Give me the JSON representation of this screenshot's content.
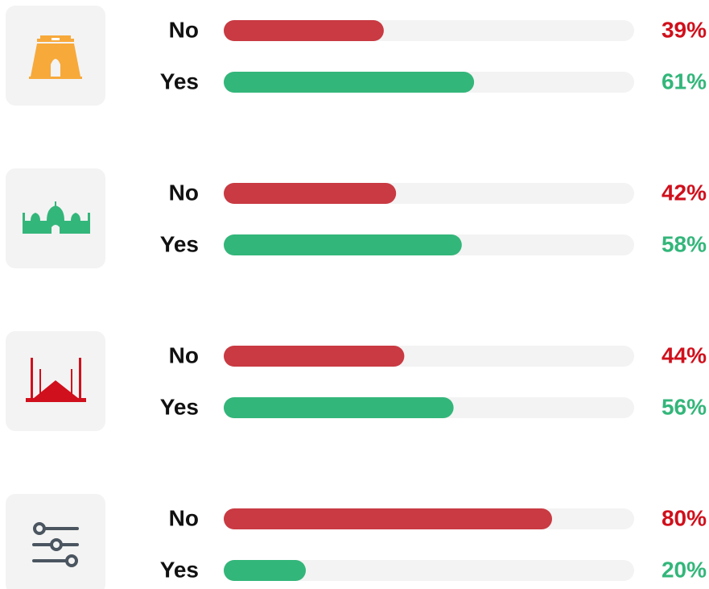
{
  "chart_data": [
    {
      "type": "bar",
      "categories": [
        "No",
        "Yes"
      ],
      "values": [
        39,
        61
      ],
      "value_labels": [
        "39%",
        "61%"
      ],
      "xlim": [
        0,
        100
      ],
      "colors": [
        "#c93a42",
        "#33b67a"
      ],
      "label_colors": [
        "#d0101c",
        "#33b67a"
      ],
      "track_color": "#f3f3f3"
    },
    {
      "type": "bar",
      "categories": [
        "No",
        "Yes"
      ],
      "values": [
        42,
        58
      ],
      "value_labels": [
        "42%",
        "58%"
      ],
      "xlim": [
        0,
        100
      ],
      "colors": [
        "#c93a42",
        "#33b67a"
      ],
      "label_colors": [
        "#d0101c",
        "#33b67a"
      ],
      "track_color": "#f3f3f3"
    },
    {
      "type": "bar",
      "categories": [
        "No",
        "Yes"
      ],
      "values": [
        44,
        56
      ],
      "value_labels": [
        "44%",
        "56%"
      ],
      "xlim": [
        0,
        100
      ],
      "colors": [
        "#c93a42",
        "#33b67a"
      ],
      "label_colors": [
        "#d0101c",
        "#33b67a"
      ],
      "track_color": "#f3f3f3"
    },
    {
      "type": "bar",
      "categories": [
        "No",
        "Yes"
      ],
      "values": [
        80,
        20
      ],
      "value_labels": [
        "80%",
        "20%"
      ],
      "xlim": [
        0,
        100
      ],
      "colors": [
        "#c93a42",
        "#33b67a"
      ],
      "label_colors": [
        "#d0101c",
        "#33b67a"
      ],
      "track_color": "#f3f3f3"
    }
  ]
}
